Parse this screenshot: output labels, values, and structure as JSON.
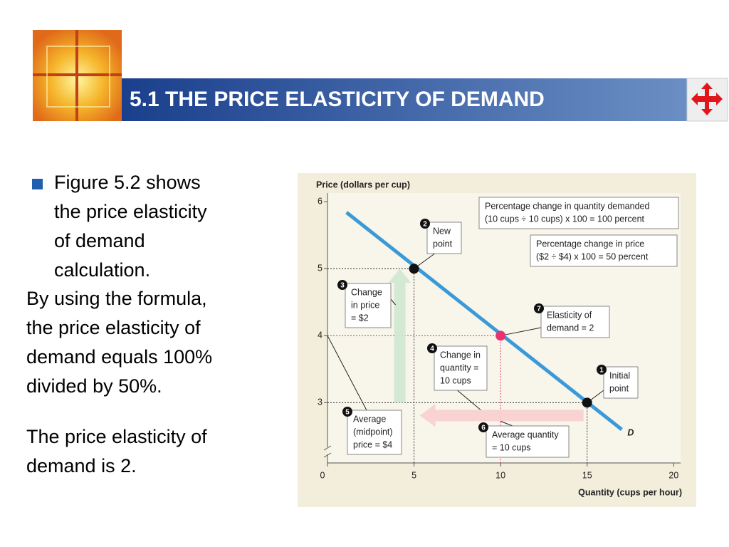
{
  "slide": {
    "title": "5.1 THE PRICE ELASTICITY OF DEMAND",
    "bullet": [
      "Figure  5.2 shows",
      "the price elasticity",
      "of demand",
      "calculation."
    ],
    "paragraphs": [
      [
        "By using the formula,",
        "the price elasticity of",
        "demand equals 100%",
        "divided by 50%."
      ],
      [
        "The price elasticity of",
        "demand is 2."
      ]
    ]
  },
  "chart_data": {
    "type": "line",
    "y_label": "Price (dollars per cup)",
    "x_label": "Quantity (cups per hour)",
    "xlim": [
      0,
      20.4
    ],
    "ylim": [
      2.1,
      6.13
    ],
    "xticks": [
      0,
      5,
      10,
      15,
      20
    ],
    "yticks": [
      3,
      4,
      5,
      6
    ],
    "series": [
      {
        "name": "D",
        "color": "#3a9ad9",
        "x": [
          1.1,
          17
        ],
        "values": [
          5.84,
          2.6
        ]
      }
    ],
    "points": {
      "x": [
        5,
        10,
        15
      ],
      "values": [
        5,
        4,
        3
      ],
      "colors": [
        "#111111",
        "#e8336d",
        "#111111"
      ]
    },
    "annotations": [
      {
        "number": 1,
        "text": [
          "Initial",
          "point"
        ]
      },
      {
        "number": 2,
        "text": [
          "New",
          "point"
        ]
      },
      {
        "number": 3,
        "text": [
          "Change",
          "in price",
          "= $2"
        ]
      },
      {
        "number": 4,
        "text": [
          "Change in",
          "quantity =",
          "10 cups"
        ]
      },
      {
        "number": 5,
        "text": [
          "Average",
          "(midpoint)",
          "price = $4"
        ]
      },
      {
        "number": 6,
        "text": [
          "Average quantity",
          "= 10 cups"
        ]
      },
      {
        "number": 7,
        "text": [
          "Elasticity of",
          "demand = 2"
        ]
      }
    ],
    "notes": [
      [
        "Percentage change in quantity demanded",
        "(10 cups ÷ 10 cups) x 100 = 100 percent"
      ],
      [
        "Percentage change in price",
        "($2 ÷ $4) x 100 = 50 percent"
      ]
    ]
  }
}
